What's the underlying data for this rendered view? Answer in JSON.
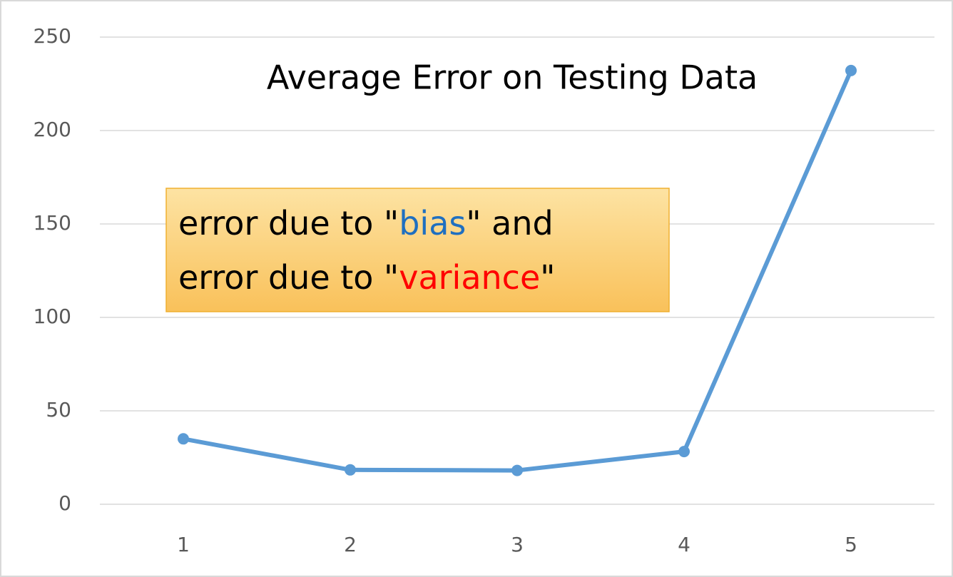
{
  "chart_data": {
    "type": "line",
    "title": "Average Error on Testing Data",
    "categories": [
      "1",
      "2",
      "3",
      "4",
      "5"
    ],
    "series": [
      {
        "color": "#5b9bd5",
        "values": [
          35.0,
          18.4,
          18.1,
          28.2,
          232.1
        ]
      }
    ],
    "ylim": [
      0,
      250
    ],
    "yticks": [
      0,
      50,
      100,
      150,
      200,
      250
    ],
    "grid": true,
    "annotation": {
      "lines": [
        [
          {
            "text": "error due to \"",
            "color": "#000000"
          },
          {
            "text": "bias",
            "color": "#1f6fc0"
          },
          {
            "text": "\" and",
            "color": "#000000"
          }
        ],
        [
          {
            "text": "error due to \"",
            "color": "#000000"
          },
          {
            "text": "variance",
            "color": "#ff0000"
          },
          {
            "text": "\"",
            "color": "#000000"
          }
        ]
      ]
    }
  }
}
